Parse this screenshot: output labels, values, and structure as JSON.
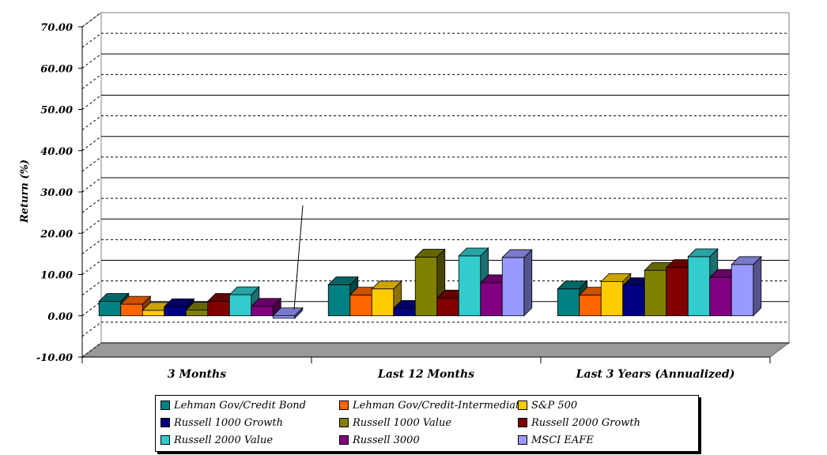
{
  "chart_data": {
    "type": "bar",
    "ylabel": "Return (%)",
    "ylim": [
      -10,
      70
    ],
    "yticks": [
      "70.00",
      "60.00",
      "50.00",
      "40.00",
      "30.00",
      "20.00",
      "10.00",
      "0.00",
      "-10.00"
    ],
    "categories": [
      "3 Months",
      "Last 12 Months",
      "Last 3 Years (Annualized)"
    ],
    "series": [
      {
        "name": "Lehman Gov/Credit Bond",
        "color": "#008080",
        "values": [
          3.5,
          7.5,
          6.5
        ]
      },
      {
        "name": "Lehman Gov/Credit-Intermediate",
        "color": "#ff6600",
        "values": [
          2.8,
          5.0,
          5.0
        ]
      },
      {
        "name": "S&P 500",
        "color": "#ffcc00",
        "values": [
          1.3,
          6.5,
          8.3
        ]
      },
      {
        "name": "Russell 1000 Growth",
        "color": "#000080",
        "values": [
          2.2,
          1.8,
          7.3
        ]
      },
      {
        "name": "Russell 1000 Value",
        "color": "#808000",
        "values": [
          1.4,
          14.2,
          11.0
        ]
      },
      {
        "name": "Russell 2000 Growth",
        "color": "#800000",
        "values": [
          3.5,
          4.3,
          11.7
        ]
      },
      {
        "name": "Russell 2000 Value",
        "color": "#33cccc",
        "values": [
          5.1,
          14.5,
          14.3
        ]
      },
      {
        "name": "Russell 3000",
        "color": "#800080",
        "values": [
          2.3,
          8.0,
          9.3
        ]
      },
      {
        "name": "MSCI EAFE",
        "color": "#9999ff",
        "values": [
          -0.6,
          14.1,
          12.4
        ]
      }
    ],
    "grid": true,
    "legend": "bottom"
  }
}
